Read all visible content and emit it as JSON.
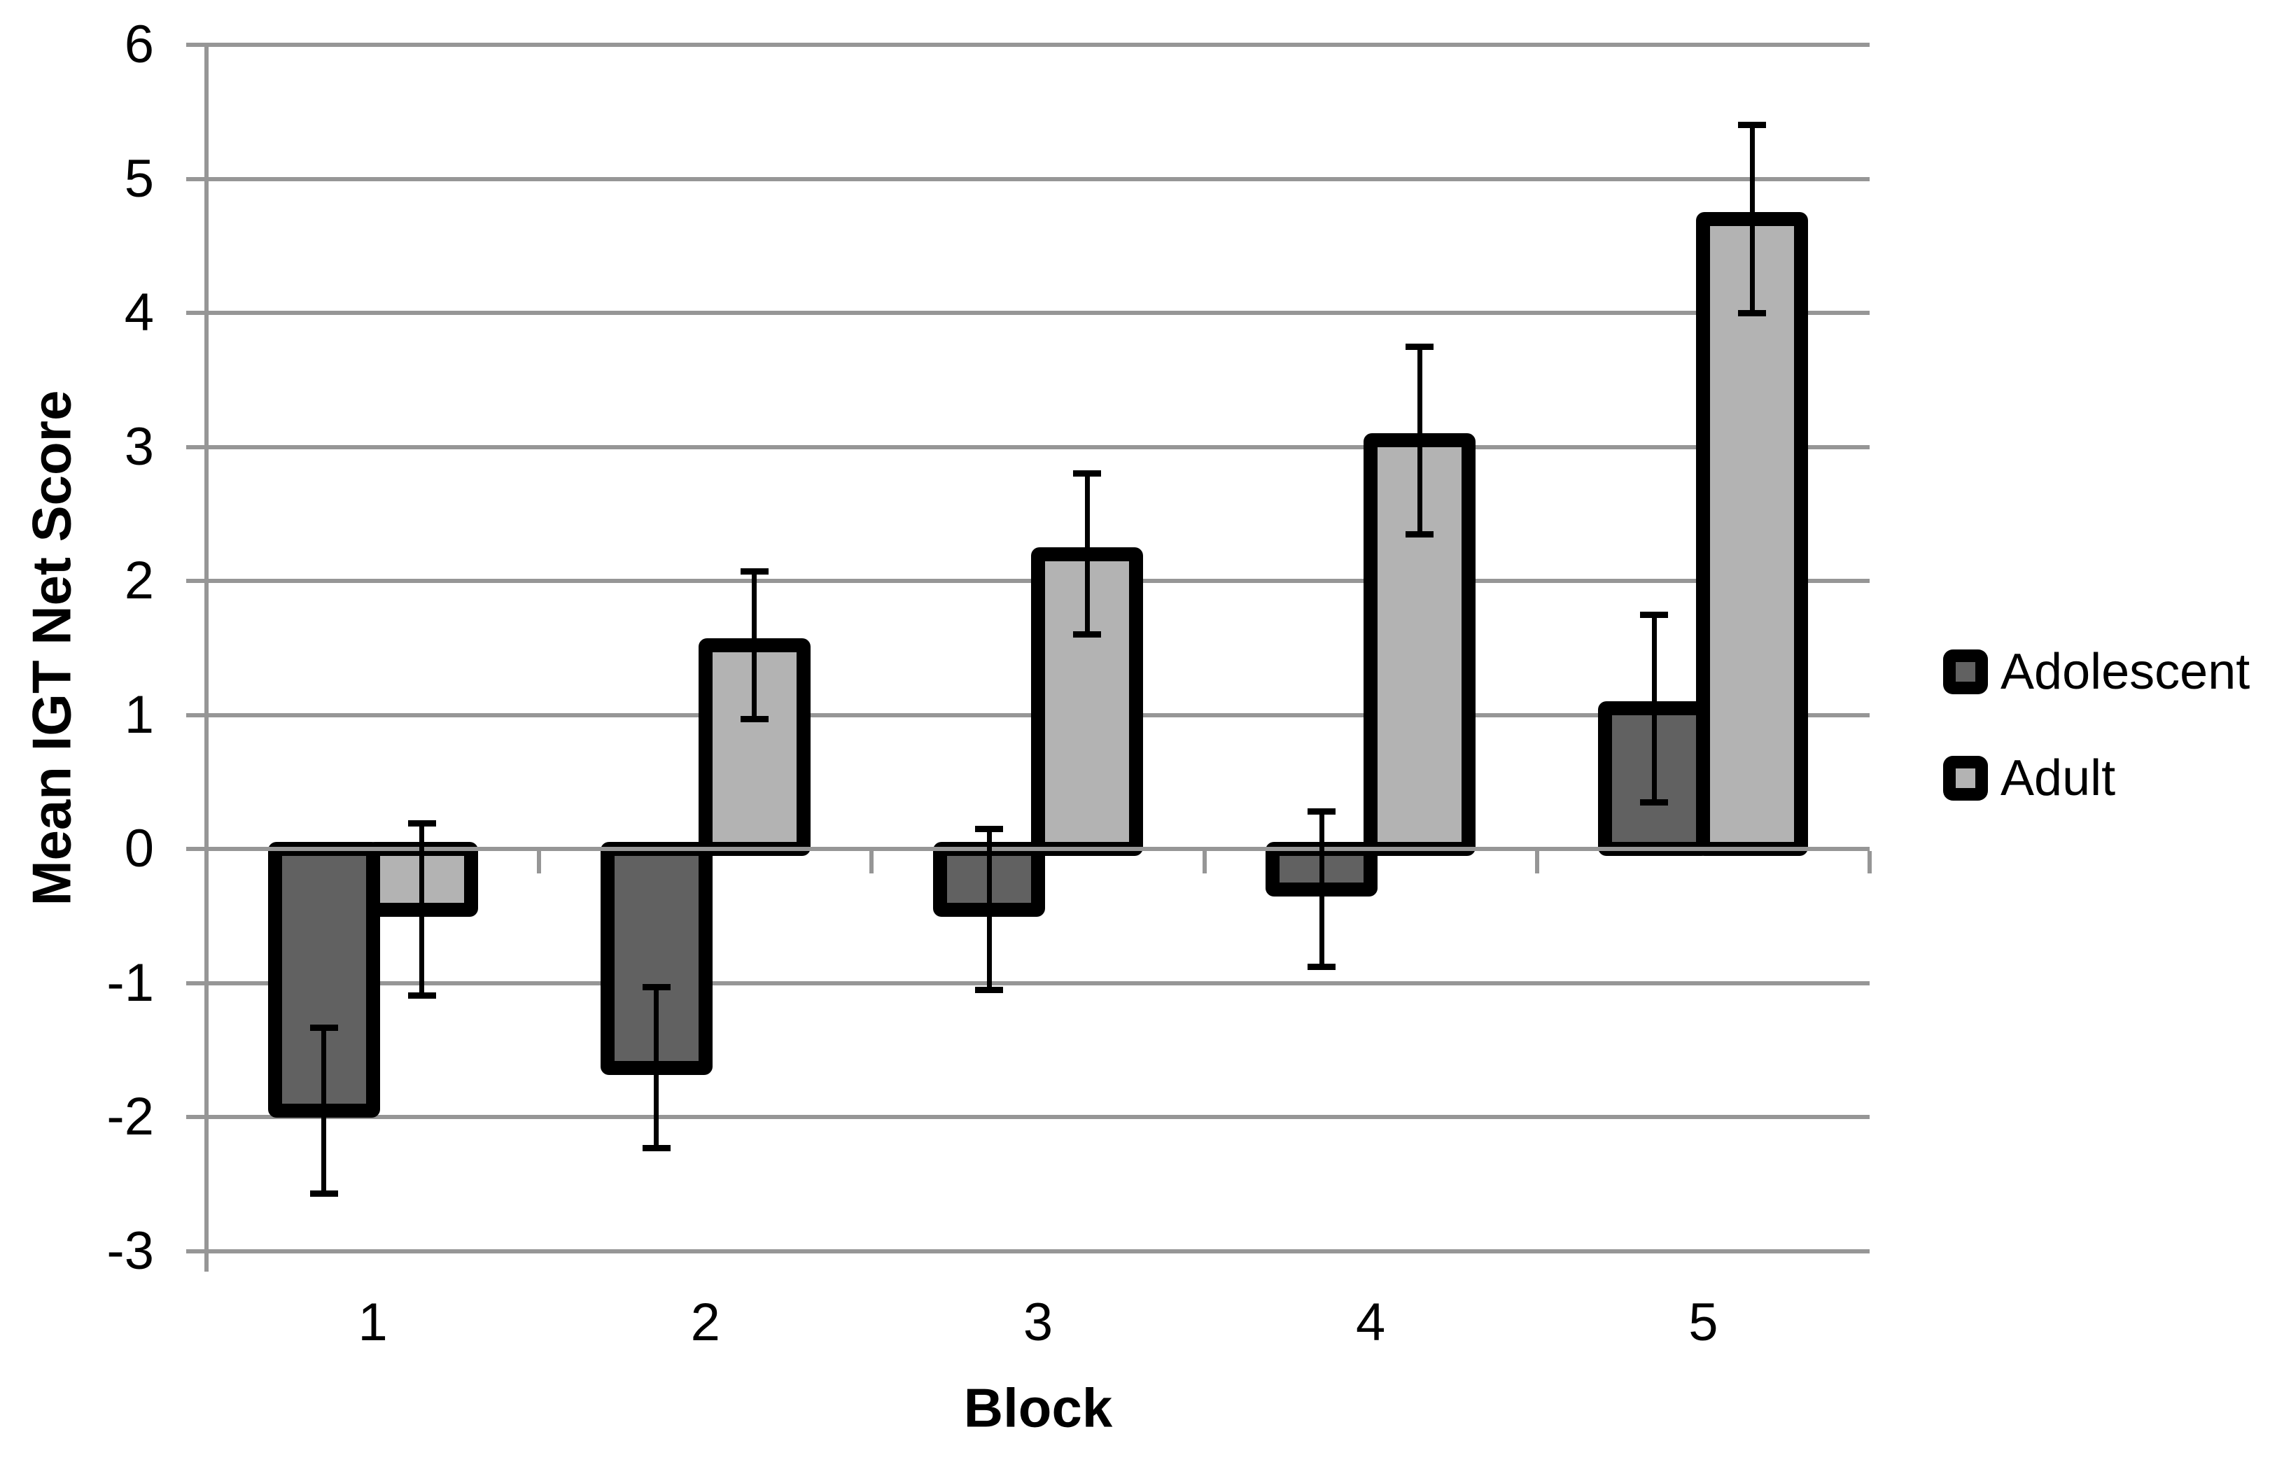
{
  "figure": {
    "background_color": "#ffffff"
  },
  "chart_data": {
    "type": "bar",
    "title": "",
    "xlabel": "Block",
    "ylabel": "Mean IGT Net Score",
    "categories": [
      "1",
      "2",
      "3",
      "4",
      "5"
    ],
    "series": [
      {
        "name": "Adolescent",
        "color": "#616161",
        "values": [
          -1.95,
          -1.63,
          -0.45,
          -0.3,
          1.05
        ],
        "error_bars": [
          0.62,
          0.6,
          0.6,
          0.58,
          0.7
        ]
      },
      {
        "name": "Adult",
        "color": "#b3b3b3",
        "values": [
          -0.45,
          1.52,
          2.2,
          3.05,
          4.7
        ],
        "error_bars": [
          0.64,
          0.55,
          0.6,
          0.7,
          0.7
        ]
      }
    ],
    "ylim": [
      -3,
      6
    ],
    "ytick_values": [
      6,
      5,
      4,
      3,
      2,
      1,
      0,
      -1,
      -2,
      -3
    ],
    "ytick_labels": [
      "6",
      "5",
      "4",
      "3",
      "2",
      "1",
      "0",
      "-1",
      "-2",
      "-3"
    ],
    "grid": true,
    "legend_position": "right",
    "styles": {
      "bar_border_color": "#000000",
      "error_bar_color": "#000000",
      "gridline_color": "#969696",
      "axis_color": "#969696",
      "text_color": "#000000"
    }
  }
}
